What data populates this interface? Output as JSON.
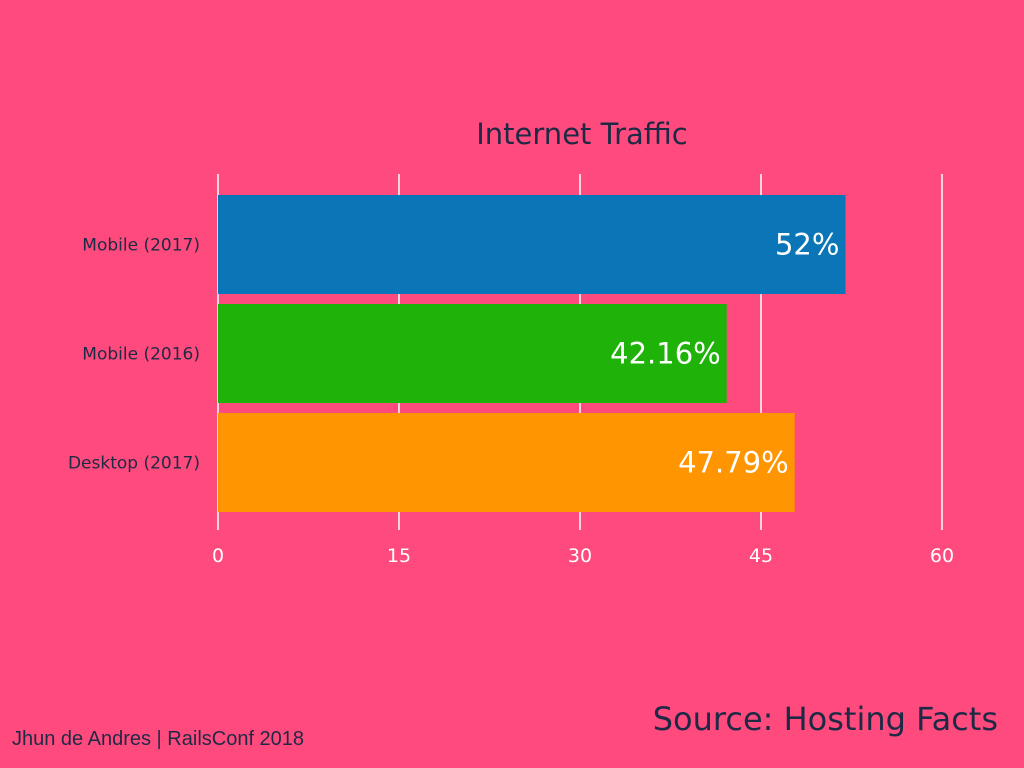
{
  "colors": {
    "background": "#ff4a7d",
    "text_dark": "#1e2a45",
    "text_light": "#ffffff"
  },
  "chart_data": {
    "type": "bar",
    "orientation": "horizontal",
    "title": "Internet Traffic",
    "categories": [
      "Mobile (2017)",
      "Mobile (2016)",
      "Desktop (2017)"
    ],
    "values": [
      52,
      42.16,
      47.79
    ],
    "value_labels": [
      "52%",
      "42.16%",
      "47.79%"
    ],
    "bar_colors": [
      "#0a76b7",
      "#1fb30a",
      "#ff9500"
    ],
    "xlim": [
      0,
      60
    ],
    "xticks": [
      0,
      15,
      30,
      45,
      60
    ],
    "xtick_labels": [
      "0",
      "15",
      "30",
      "45",
      "60"
    ],
    "grid": true,
    "xlabel": "",
    "ylabel": ""
  },
  "footer": {
    "author": "Jhun de Andres | RailsConf 2018",
    "source": "Source: Hosting Facts"
  }
}
